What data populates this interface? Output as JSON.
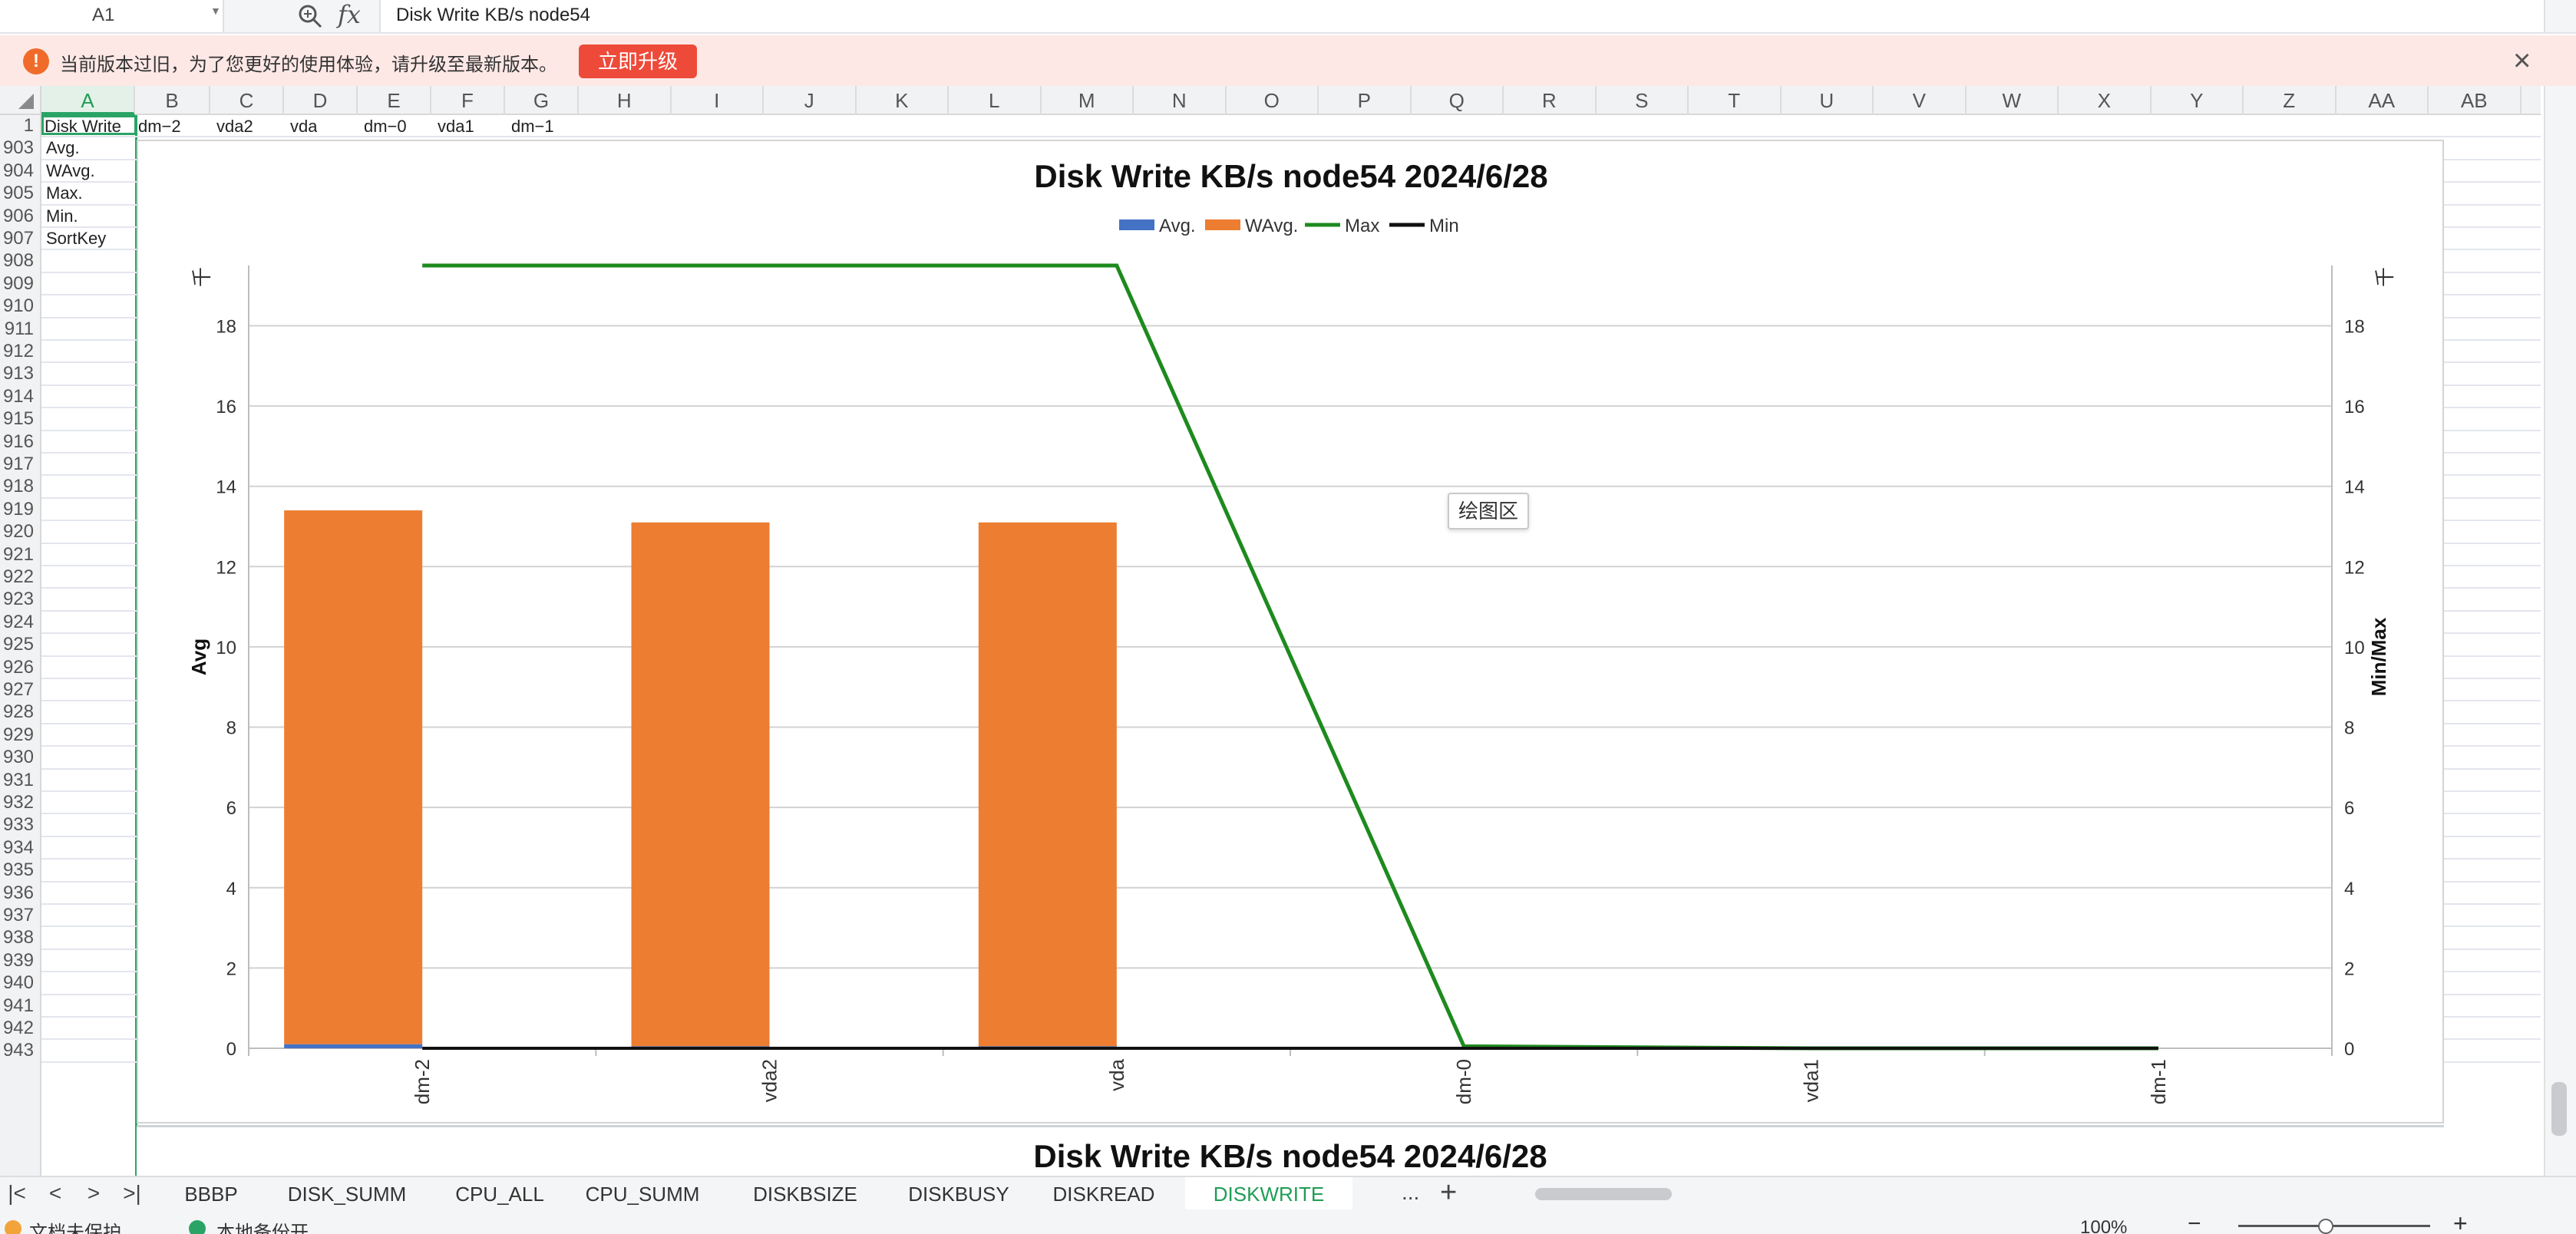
{
  "formula_bar": {
    "cell_ref": "A1",
    "fx_label": "fx",
    "value": "Disk Write KB/s node54"
  },
  "banner": {
    "message": "当前版本过旧，为了您更好的使用体验，请升级至最新版本。",
    "upgrade_label": "立即升级",
    "warn_symbol": "!",
    "close_symbol": "×"
  },
  "grid": {
    "columns": [
      "A",
      "B",
      "C",
      "D",
      "E",
      "F",
      "G",
      "H",
      "I",
      "J",
      "K",
      "L",
      "M",
      "N",
      "O",
      "P",
      "Q",
      "R",
      "S",
      "T",
      "U",
      "V",
      "W",
      "X",
      "Y",
      "Z",
      "AA",
      "AB"
    ],
    "rows": [
      "1",
      "903",
      "904",
      "905",
      "906",
      "907",
      "908",
      "909",
      "910",
      "911",
      "912",
      "913",
      "914",
      "915",
      "916",
      "917",
      "918",
      "919",
      "920",
      "921",
      "922",
      "923",
      "924",
      "925",
      "926",
      "927",
      "928",
      "929",
      "930",
      "931",
      "932",
      "933",
      "934",
      "935",
      "936",
      "937",
      "938",
      "939",
      "940",
      "941",
      "942",
      "943"
    ],
    "row1_cells": [
      "Disk  Write",
      "dm−2",
      "vda2",
      "vda",
      "dm−0",
      "vda1",
      "dm−1"
    ],
    "colA_cells": [
      "Avg.",
      "WAvg.",
      "Max.",
      "Min.",
      "SortKey"
    ]
  },
  "tooltip": "绘图区",
  "chart_data": {
    "type": "bar",
    "title": "Disk Write KB/s node54  2024/6/28",
    "categories": [
      "dm-2",
      "vda2",
      "vda",
      "dm-0",
      "vda1",
      "dm-1"
    ],
    "ylabel": "Avg",
    "y2label": "Min/Max",
    "ylim": [
      0,
      19.5
    ],
    "yticks": [
      "0",
      "2",
      "4",
      "6",
      "8",
      "10",
      "12",
      "14",
      "16",
      "18"
    ],
    "y_unit_mark": "千",
    "y2_unit_mark": "千",
    "legend_position": "top",
    "grid": true,
    "series": [
      {
        "name": "Avg.",
        "kind": "bar",
        "color": "#4472c4",
        "values": [
          0.1,
          0.05,
          0.05,
          0,
          0,
          0
        ]
      },
      {
        "name": "WAvg.",
        "kind": "bar",
        "color": "#ed7d31",
        "values": [
          13.3,
          13.05,
          13.05,
          0,
          0,
          0
        ]
      },
      {
        "name": "Max",
        "kind": "line",
        "color": "#1e8a1e",
        "values": [
          19.5,
          19.5,
          19.5,
          0.05,
          0,
          0
        ]
      },
      {
        "name": "Min",
        "kind": "line",
        "color": "#111111",
        "values": [
          0,
          0,
          0,
          0,
          0,
          0
        ]
      }
    ]
  },
  "chart2": {
    "title": "Disk Write KB/s node54  2024/6/28"
  },
  "sheet_bar": {
    "nav": [
      "|<",
      "<",
      ">",
      ">|"
    ],
    "tabs": [
      "BBBP",
      "DISK_SUMM",
      "CPU_ALL",
      "CPU_SUMM",
      "DISKBSIZE",
      "DISKBUSY",
      "DISKREAD",
      "DISKWRITE"
    ],
    "active_tab": "DISKWRITE",
    "more_label": "...",
    "add_label": "+"
  },
  "status_bar": {
    "doc_state": "文档未保护",
    "backup_state": "本地备份开",
    "zoom": "100%",
    "zoom_minus": "−",
    "zoom_plus": "+"
  },
  "colors": {
    "accent": "#2aa466",
    "upgrade": "#ee4a3a",
    "banner_bg": "#fde8e5"
  }
}
